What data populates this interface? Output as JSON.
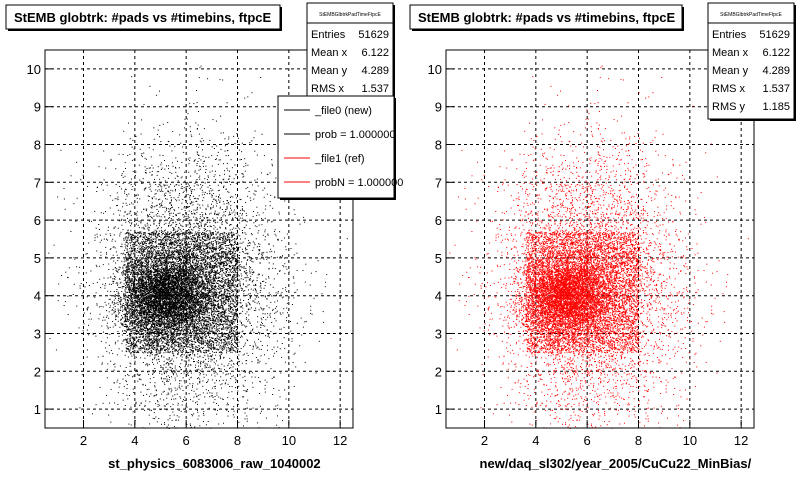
{
  "footer_text": "",
  "chart_data": [
    {
      "type": "scatter",
      "title": "StEMB globtrk: #pads vs #timebins, ftpcE",
      "xlabel": "st_physics_6083006_raw_1040002",
      "ylabel": "",
      "xlim": [
        0.5,
        12.5
      ],
      "ylim": [
        0.5,
        10.5
      ],
      "x_ticks": [
        "2",
        "4",
        "6",
        "8",
        "10",
        "12"
      ],
      "y_ticks": [
        "1",
        "2",
        "3",
        "4",
        "5",
        "6",
        "7",
        "8",
        "9",
        "10"
      ],
      "grid": true,
      "marker_color": "#000000",
      "stats": {
        "name": "StEMBGlbtrkPadTimeFtpcE",
        "rows": [
          {
            "label": "Entries",
            "value": "51629"
          },
          {
            "label": "Mean x",
            "value": "6.122"
          },
          {
            "label": "Mean y",
            "value": "4.289"
          },
          {
            "label": "RMS x",
            "value": "1.537"
          }
        ]
      },
      "legend": {
        "placement": "top-right",
        "entries": [
          {
            "label": "_file0 (new)",
            "color": "#000000"
          },
          {
            "label": "prob = 1.000000",
            "color": "#000000"
          },
          {
            "label": "_file1 (ref)",
            "color": "#ff0000"
          },
          {
            "label": "probN = 1.000000",
            "color": "#ff0000"
          }
        ]
      },
      "distribution": {
        "entries": 51629,
        "mean_x": 6.122,
        "mean_y": 4.289,
        "rms_x": 1.537,
        "rms_y": 1.185,
        "dense_region": {
          "x": [
            3.6,
            8.0
          ],
          "y": [
            2.5,
            5.7
          ]
        }
      }
    },
    {
      "type": "scatter",
      "title": "StEMB globtrk: #pads vs #timebins, ftpcE",
      "xlabel": "new/daq_sl302/year_2005/CuCu22_MinBias/",
      "ylabel": "",
      "xlim": [
        0.5,
        12.5
      ],
      "ylim": [
        0.5,
        10.5
      ],
      "x_ticks": [
        "2",
        "4",
        "6",
        "8",
        "10",
        "12"
      ],
      "y_ticks": [
        "1",
        "2",
        "3",
        "4",
        "5",
        "6",
        "7",
        "8",
        "9",
        "10"
      ],
      "grid": true,
      "marker_color": "#ff0000",
      "stats": {
        "name": "StEMBGlbtrkPadTimeFtpcE",
        "rows": [
          {
            "label": "Entries",
            "value": "51629"
          },
          {
            "label": "Mean x",
            "value": "6.122"
          },
          {
            "label": "Mean y",
            "value": "4.289"
          },
          {
            "label": "RMS x",
            "value": "1.537"
          },
          {
            "label": "RMS y",
            "value": "1.185"
          }
        ]
      },
      "distribution": {
        "entries": 51629,
        "mean_x": 6.122,
        "mean_y": 4.289,
        "rms_x": 1.537,
        "rms_y": 1.185,
        "dense_region": {
          "x": [
            3.6,
            8.0
          ],
          "y": [
            2.5,
            5.7
          ]
        }
      }
    }
  ]
}
